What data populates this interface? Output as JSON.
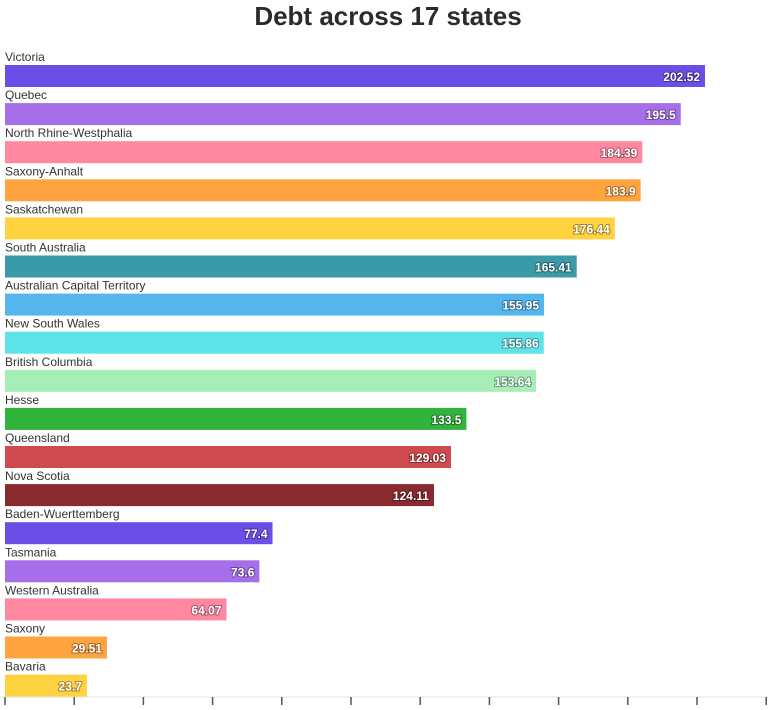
{
  "chart_data": {
    "type": "bar",
    "orientation": "horizontal",
    "title": "Debt across 17 states",
    "xlabel": "",
    "ylabel": "",
    "xlim": [
      0,
      220
    ],
    "grid": false,
    "categories": [
      "Victoria",
      "Quebec",
      "North Rhine-Westphalia",
      "Saxony-Anhalt",
      "Saskatchewan",
      "South Australia",
      "Australian Capital Territory",
      "New South Wales",
      "British Columbia",
      "Hesse",
      "Queensland",
      "Nova Scotia",
      "Baden-Wuerttemberg",
      "Tasmania",
      "Western Australia",
      "Saxony",
      "Bavaria"
    ],
    "values": [
      202.52,
      195.5,
      184.39,
      183.9,
      176.44,
      165.41,
      155.95,
      155.86,
      153.64,
      133.5,
      129.03,
      124.11,
      77.4,
      73.6,
      64.07,
      29.51,
      23.7
    ],
    "value_labels": [
      "202.52",
      "195.5",
      "184.39",
      "183.9",
      "176.44",
      "165.41",
      "155.95",
      "155.86",
      "153.64",
      "133.5",
      "129.03",
      "124.11",
      "77.4",
      "73.6",
      "64.07",
      "29.51",
      "23.7"
    ],
    "colors": [
      "#6a4ee6",
      "#a66ee8",
      "#ff87a0",
      "#ffa33f",
      "#ffd23f",
      "#3a9aa8",
      "#55b6ee",
      "#5ee3e8",
      "#a6edb6",
      "#31b43c",
      "#cf4a4f",
      "#8a2a2f",
      "#6a4ee6",
      "#a66ee8",
      "#ff87a0",
      "#ffa33f",
      "#ffd23f"
    ]
  }
}
